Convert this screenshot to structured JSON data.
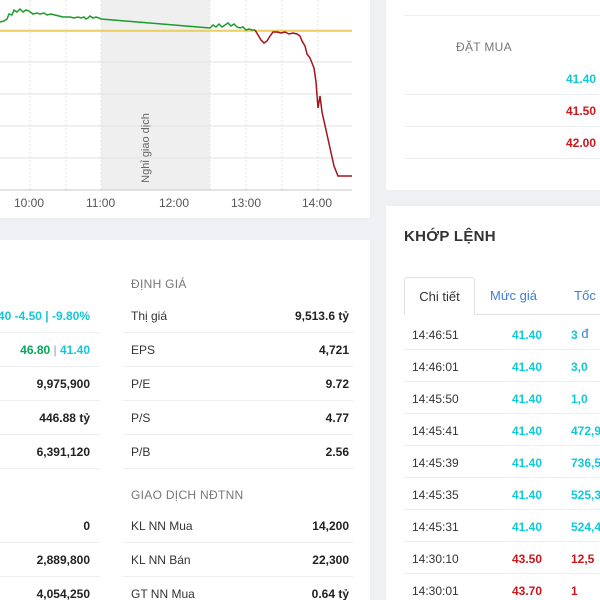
{
  "chart": {
    "x_ticks": [
      "10:00",
      "11:00",
      "12:00",
      "13:00",
      "14:00"
    ],
    "break_label": "Nghỉ giao dịch",
    "colors": {
      "up": "#1a9c2a",
      "down": "#a31418",
      "reference": "#f0c419",
      "break_band": "#efefef"
    }
  },
  "orderbook": {
    "header": "ĐẶT MUA",
    "rows": [
      {
        "price": "41.40",
        "color": "#12c8d6"
      },
      {
        "price": "41.50",
        "color": "#c8161c"
      },
      {
        "price": "42.00",
        "color": "#c8161c"
      }
    ]
  },
  "stats": {
    "left_rows": [
      {
        "text": "40 -4.50 | -9.80%"
      },
      {
        "value_a": "46.80",
        "sep": " | ",
        "value_b": "41.40"
      },
      {
        "value": "9,975,900"
      },
      {
        "value": "446.88 tỷ"
      },
      {
        "value": "6,391,120"
      },
      {
        "value": "0"
      },
      {
        "value": "2,889,800"
      },
      {
        "value": "4,054,250"
      }
    ],
    "valuation": {
      "title": "ĐỊNH GIÁ",
      "rows": [
        {
          "label": "Thị giá",
          "value": "9,513.6 tỷ"
        },
        {
          "label": "EPS",
          "value": "4,721"
        },
        {
          "label": "P/E",
          "value": "9.72"
        },
        {
          "label": "P/S",
          "value": "4.77"
        },
        {
          "label": "P/B",
          "value": "2.56"
        }
      ]
    },
    "foreign": {
      "title": "GIAO DỊCH NĐTNN",
      "rows": [
        {
          "label": "KL NN Mua",
          "value": "14,200"
        },
        {
          "label": "KL NN Bán",
          "value": "22,300"
        },
        {
          "label": "GT NN Mua",
          "value": "0.64 tỷ"
        }
      ]
    }
  },
  "trades": {
    "title": "KHỚP LỆNH",
    "tabs": [
      "Chi tiết",
      "Mức giá",
      "Tốc đ"
    ],
    "rows": [
      {
        "time": "14:46:51",
        "price": "41.40",
        "volume": "3",
        "color": "#12c8d6"
      },
      {
        "time": "14:46:01",
        "price": "41.40",
        "volume": "3,0",
        "color": "#12c8d6"
      },
      {
        "time": "14:45:50",
        "price": "41.40",
        "volume": "1,0",
        "color": "#12c8d6"
      },
      {
        "time": "14:45:41",
        "price": "41.40",
        "volume": "472,9",
        "color": "#12c8d6"
      },
      {
        "time": "14:45:39",
        "price": "41.40",
        "volume": "736,5",
        "color": "#12c8d6"
      },
      {
        "time": "14:45:35",
        "price": "41.40",
        "volume": "525,3",
        "color": "#12c8d6"
      },
      {
        "time": "14:45:31",
        "price": "41.40",
        "volume": "524,4",
        "color": "#12c8d6"
      },
      {
        "time": "14:30:10",
        "price": "43.50",
        "volume": "12,5",
        "color": "#c8161c"
      },
      {
        "time": "14:30:01",
        "price": "43.70",
        "volume": "1",
        "color": "#c8161c"
      }
    ]
  }
}
